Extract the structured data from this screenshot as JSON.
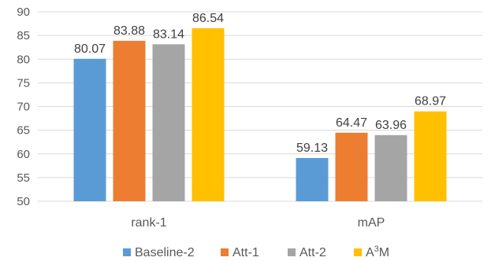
{
  "chart_data": {
    "type": "bar",
    "categories": [
      "rank-1",
      "mAP"
    ],
    "series": [
      {
        "name": "Baseline-2",
        "values": [
          80.07,
          59.13
        ],
        "color": "#5b9bd5"
      },
      {
        "name": "Att-1",
        "values": [
          83.88,
          64.47
        ],
        "color": "#ed7d31"
      },
      {
        "name": "Att-2",
        "values": [
          83.14,
          63.96
        ],
        "color": "#a5a5a5"
      },
      {
        "name": "A3M",
        "values": [
          86.54,
          68.97
        ],
        "color": "#ffc000"
      }
    ],
    "data_labels": [
      [
        "80.07",
        "59.13"
      ],
      [
        "83.88",
        "64.47"
      ],
      [
        "83.14",
        "63.96"
      ],
      [
        "86.54",
        "68.97"
      ]
    ],
    "legend_labels": [
      {
        "base": "Baseline-2",
        "sup": ""
      },
      {
        "base": "Att-1",
        "sup": ""
      },
      {
        "base": "Att-2",
        "sup": ""
      },
      {
        "base": "A",
        "sup": "3",
        "tail": "M"
      }
    ],
    "ylim": [
      50,
      90
    ],
    "yticks": [
      50,
      55,
      60,
      65,
      70,
      75,
      80,
      85,
      90
    ],
    "grid": true,
    "legend_position": "bottom"
  }
}
